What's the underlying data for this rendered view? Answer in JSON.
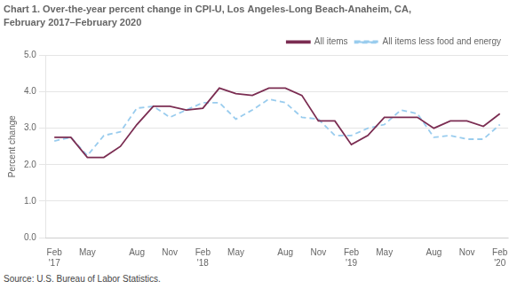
{
  "chart_data": {
    "type": "line",
    "title": "Chart 1. Over-the-year percent change in CPI-U, Los Angeles-Long Beach-Anaheim, CA,",
    "subtitle": "February 2017–February 2020",
    "y_label": "Percent change",
    "source": "Source: U.S. Bureau of Labor Statistics.",
    "categories": [
      "Feb\n'17",
      null,
      "May",
      null,
      null,
      "Aug",
      null,
      "Nov",
      null,
      "Feb\n'18",
      null,
      "May",
      null,
      null,
      "Aug",
      null,
      "Nov",
      null,
      "Feb\n'19",
      null,
      "May",
      null,
      null,
      "Aug",
      null,
      "Nov",
      null,
      "Feb\n'20"
    ],
    "series": [
      {
        "name": "All items",
        "color": "#7B2D52",
        "line_style": "solid",
        "values": [
          2.75,
          2.75,
          2.2,
          2.2,
          2.5,
          3.1,
          3.6,
          3.6,
          3.5,
          3.55,
          4.1,
          3.95,
          3.9,
          4.1,
          4.1,
          3.9,
          3.2,
          3.2,
          2.55,
          2.8,
          3.3,
          3.3,
          3.3,
          3.0,
          3.2,
          3.2,
          3.05,
          3.4
        ]
      },
      {
        "name": "All items less food and energy",
        "color": "#99CCEE",
        "line_style": "dashed",
        "values": [
          2.65,
          2.75,
          2.25,
          2.8,
          2.9,
          3.55,
          3.6,
          3.3,
          3.5,
          3.7,
          3.7,
          3.25,
          3.5,
          3.8,
          3.7,
          3.3,
          3.25,
          2.8,
          2.8,
          3.0,
          3.1,
          3.5,
          3.4,
          2.75,
          2.8,
          2.7,
          2.7,
          3.1
        ]
      }
    ],
    "ylim": [
      0.0,
      5.0
    ],
    "yticks": [
      {
        "value": 0,
        "label": "0.0"
      },
      {
        "value": 1,
        "label": "1.0"
      },
      {
        "value": 2,
        "label": "2.0"
      },
      {
        "value": 3,
        "label": "3.0"
      },
      {
        "value": 4,
        "label": "4.0"
      },
      {
        "value": 5,
        "label": "5.0"
      }
    ],
    "grid": true,
    "legend": "upper right"
  }
}
